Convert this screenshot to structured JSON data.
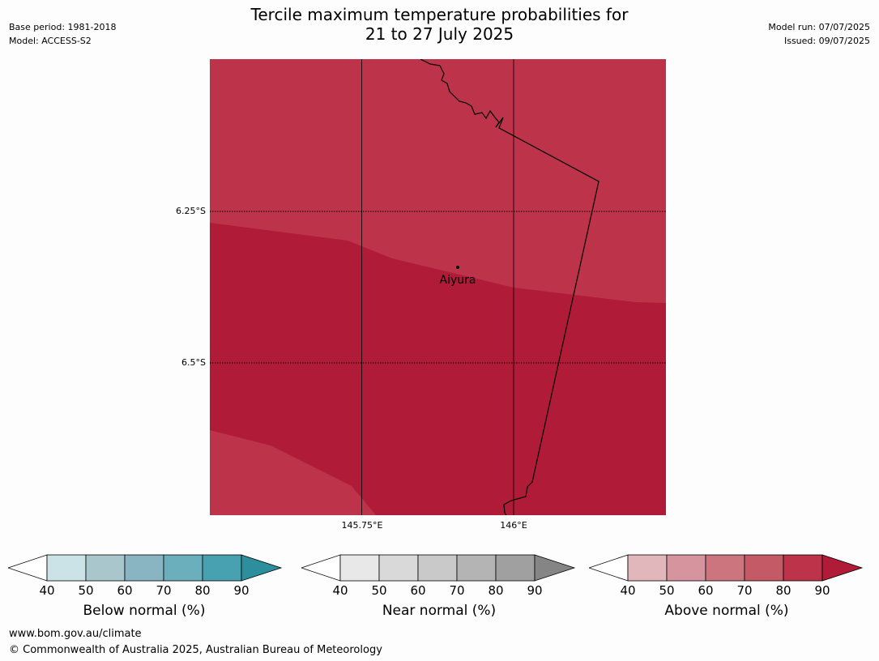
{
  "title_line1": "Tercile maximum temperature probabilities for",
  "title_line2": "21 to 27 July 2025",
  "meta": {
    "base_period": "Base period: 1981-2018",
    "model": "Model: ACCESS-S2",
    "model_run": "Model run: 07/07/2025",
    "issued": "Issued: 09/07/2025"
  },
  "map": {
    "place_label": "Aiyura",
    "lat_labels": [
      "6.25°S",
      "6.5°S"
    ],
    "lon_labels": [
      "145.75°E",
      "146°E"
    ],
    "colors": {
      "above_80": "#bc334a",
      "above_90": "#b01c38",
      "border": "#000000"
    }
  },
  "legends": [
    {
      "title": "Below normal (%)",
      "ticks": [
        "40",
        "50",
        "60",
        "70",
        "80",
        "90"
      ],
      "colors": [
        "#cbe2e7",
        "#a8c6cb",
        "#89b5c3",
        "#6baebc",
        "#48a1b0",
        "#2d8f9e"
      ]
    },
    {
      "title": "Near normal (%)",
      "ticks": [
        "40",
        "50",
        "60",
        "70",
        "80",
        "90"
      ],
      "colors": [
        "#e8e8e8",
        "#d9d9d9",
        "#c9c9c9",
        "#b4b4b4",
        "#a0a0a0",
        "#858585"
      ]
    },
    {
      "title": "Above normal (%)",
      "ticks": [
        "40",
        "50",
        "60",
        "70",
        "80",
        "90"
      ],
      "colors": [
        "#e1b7bc",
        "#d6959e",
        "#cc757f",
        "#c45a66",
        "#bc334a",
        "#b01c38"
      ]
    }
  ],
  "footer": {
    "url": "www.bom.gov.au/climate",
    "copyright": "© Commonwealth of Australia 2025, Australian Bureau of Meteorology"
  }
}
